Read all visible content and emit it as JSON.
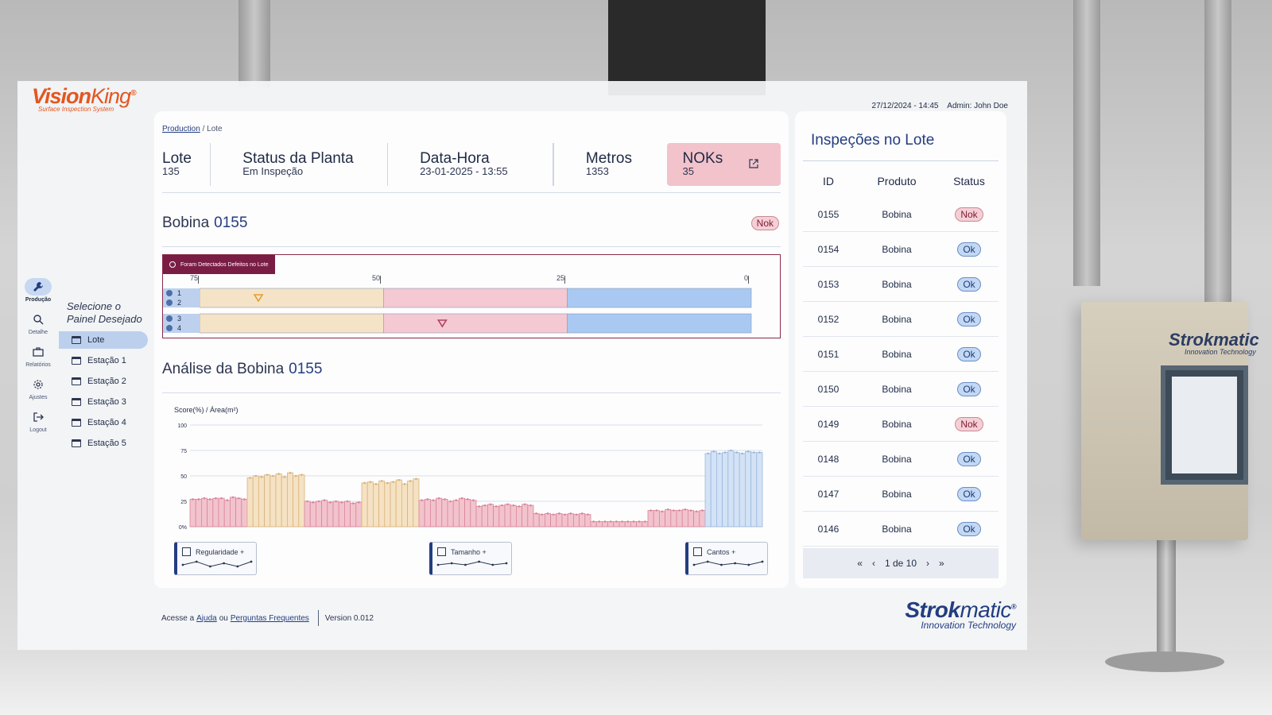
{
  "logo": {
    "name": "VisionKing",
    "part1": "Vision",
    "part2": "King",
    "tagline": "Surface Inspection System",
    "mark": "®"
  },
  "topbar": {
    "datetime": "27/12/2024 - 14:45",
    "user": "Admin: John Doe"
  },
  "rail": [
    {
      "label": "Produção",
      "icon": "wrench-icon",
      "active": true
    },
    {
      "label": "Detalhe",
      "icon": "magnifier-icon",
      "active": false
    },
    {
      "label": "Relatórios",
      "icon": "briefcase-icon",
      "active": false
    },
    {
      "label": "Ajustes",
      "icon": "gear-icon",
      "active": false
    },
    {
      "label": "Logout",
      "icon": "logout-icon",
      "active": false
    }
  ],
  "menu": {
    "title": "Selecione o Painel Desejado",
    "items": [
      {
        "label": "Lote",
        "active": true
      },
      {
        "label": "Estação 1"
      },
      {
        "label": "Estação 2"
      },
      {
        "label": "Estação 3"
      },
      {
        "label": "Estação 4"
      },
      {
        "label": "Estação 5"
      }
    ]
  },
  "breadcrumb": {
    "root": "Production",
    "current": "/ Lote"
  },
  "stats": {
    "lote": {
      "title": "Lote",
      "value": "135"
    },
    "status": {
      "title": "Status da Planta",
      "value": "Em Inspeção"
    },
    "datahora": {
      "title": "Data-Hora",
      "value": "23-01-2025 - 13:55"
    },
    "metros": {
      "title": "Metros",
      "value": "1353"
    },
    "noks": {
      "title": "NOKs",
      "value": "35"
    }
  },
  "bobina": {
    "title": "Bobina",
    "id": "0155",
    "status": "Nok"
  },
  "timeline": {
    "banner": "Foram Detectados Defeitos no Lote",
    "ticks": [
      "75",
      "50",
      "25",
      "0"
    ],
    "lanes": [
      "1",
      "2",
      "3",
      "4"
    ],
    "segments": [
      {
        "from": 75,
        "to": 50,
        "color": "#f5e3c8"
      },
      {
        "from": 50,
        "to": 25,
        "color": "#f4c9d2"
      },
      {
        "from": 25,
        "to": 0,
        "color": "#a9c9f2"
      }
    ],
    "defects": [
      {
        "group": 1,
        "meter": 67,
        "color": "#e0a030"
      },
      {
        "group": 2,
        "meter": 42,
        "color": "#b0425f"
      }
    ]
  },
  "analise": {
    "title": "Análise da Bobina",
    "id": "0155",
    "ylabel": "Score(%) / Área(m²)"
  },
  "chart_data": {
    "type": "bar",
    "ylabel": "Score(%) / Área(m²)",
    "yticks": [
      "100",
      "75",
      "50",
      "25",
      "0%"
    ],
    "ylim": [
      0,
      100
    ],
    "groups": [
      {
        "color": "pink",
        "values": [
          27,
          27,
          28,
          27,
          28,
          28,
          26,
          29,
          28,
          27
        ]
      },
      {
        "color": "tan",
        "values": [
          48,
          50,
          49,
          51,
          50,
          52,
          49,
          53,
          50,
          51
        ]
      },
      {
        "color": "pink",
        "values": [
          25,
          24,
          25,
          26,
          24,
          25,
          24,
          25,
          23,
          24
        ]
      },
      {
        "color": "tan",
        "values": [
          43,
          44,
          42,
          45,
          43,
          44,
          46,
          42,
          45,
          47
        ]
      },
      {
        "color": "pink",
        "values": [
          26,
          27,
          26,
          28,
          27,
          25,
          26,
          28,
          27,
          26
        ]
      },
      {
        "color": "pink",
        "values": [
          20,
          21,
          22,
          20,
          21,
          22,
          21,
          20,
          22,
          21
        ]
      },
      {
        "color": "pink",
        "values": [
          13,
          12,
          13,
          12,
          13,
          12,
          13,
          12,
          13,
          12
        ]
      },
      {
        "color": "pink",
        "values": [
          5,
          5,
          5,
          5,
          5,
          5,
          5,
          5,
          5,
          5
        ]
      },
      {
        "color": "pink",
        "values": [
          16,
          16,
          15,
          17,
          16,
          16,
          17,
          16,
          15,
          16
        ]
      },
      {
        "color": "blue",
        "values": [
          72,
          74,
          72,
          73,
          75,
          73,
          72,
          74,
          73,
          73
        ]
      }
    ],
    "metrics": [
      {
        "label": "Regularidade",
        "icon": "grid-icon",
        "values": [
          3,
          5,
          2,
          4,
          2,
          5
        ]
      },
      {
        "label": "Tamanho",
        "icon": "resize-icon",
        "values": [
          3,
          4,
          3,
          5,
          3,
          4
        ]
      },
      {
        "label": "Cantos",
        "icon": "corners-icon",
        "values": [
          3,
          5,
          3,
          4,
          3,
          5
        ]
      }
    ]
  },
  "metric_labels": {
    "regularidade": "Regularidade +",
    "tamanho": "Tamanho +",
    "cantos": "Cantos +"
  },
  "footer": {
    "prefix": "Acesse a",
    "help": "Ajuda",
    "or": "ou",
    "faq": "Perguntas Frequentes",
    "version": "Version 0.012"
  },
  "brand": {
    "main1": "Strok",
    "main2": "matic",
    "registered": "®",
    "sub": "Innovation Technology"
  },
  "side": {
    "title": "Inspeções no Lote",
    "columns": [
      "ID",
      "Produto",
      "Status"
    ],
    "rows": [
      {
        "id": "0155",
        "produto": "Bobina",
        "status": "Nok"
      },
      {
        "id": "0154",
        "produto": "Bobina",
        "status": "Ok"
      },
      {
        "id": "0153",
        "produto": "Bobina",
        "status": "Ok"
      },
      {
        "id": "0152",
        "produto": "Bobina",
        "status": "Ok"
      },
      {
        "id": "0151",
        "produto": "Bobina",
        "status": "Ok"
      },
      {
        "id": "0150",
        "produto": "Bobina",
        "status": "Ok"
      },
      {
        "id": "0149",
        "produto": "Bobina",
        "status": "Nok"
      },
      {
        "id": "0148",
        "produto": "Bobina",
        "status": "Ok"
      },
      {
        "id": "0147",
        "produto": "Bobina",
        "status": "Ok"
      },
      {
        "id": "0146",
        "produto": "Bobina",
        "status": "Ok"
      }
    ],
    "pager": {
      "first": "«",
      "prev": "‹",
      "label": "1 de 10",
      "next": "›",
      "last": "»"
    }
  },
  "background": {
    "machine_brand": "Strokmatic",
    "machine_sub": "Innovation Technology"
  }
}
